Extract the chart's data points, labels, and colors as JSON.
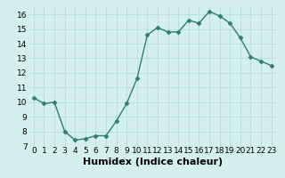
{
  "x": [
    0,
    1,
    2,
    3,
    4,
    5,
    6,
    7,
    8,
    9,
    10,
    11,
    12,
    13,
    14,
    15,
    16,
    17,
    18,
    19,
    20,
    21,
    22,
    23
  ],
  "y": [
    10.3,
    9.9,
    10.0,
    8.0,
    7.4,
    7.5,
    7.7,
    7.7,
    8.7,
    9.9,
    11.6,
    14.6,
    15.1,
    14.8,
    14.8,
    15.6,
    15.4,
    16.2,
    15.9,
    15.4,
    14.4,
    13.1,
    12.8,
    12.5
  ],
  "xlim": [
    -0.5,
    23.5
  ],
  "ylim": [
    7,
    16.5
  ],
  "xticks": [
    0,
    1,
    2,
    3,
    4,
    5,
    6,
    7,
    8,
    9,
    10,
    11,
    12,
    13,
    14,
    15,
    16,
    17,
    18,
    19,
    20,
    21,
    22,
    23
  ],
  "yticks": [
    7,
    8,
    9,
    10,
    11,
    12,
    13,
    14,
    15,
    16
  ],
  "xlabel": "Humidex (Indice chaleur)",
  "line_color": "#2e7d6e",
  "marker": "D",
  "marker_size": 2.5,
  "bg_color": "#d4f0ee",
  "grid_color": "#b8dcda",
  "xlabel_fontsize": 8,
  "tick_fontsize": 6.5
}
